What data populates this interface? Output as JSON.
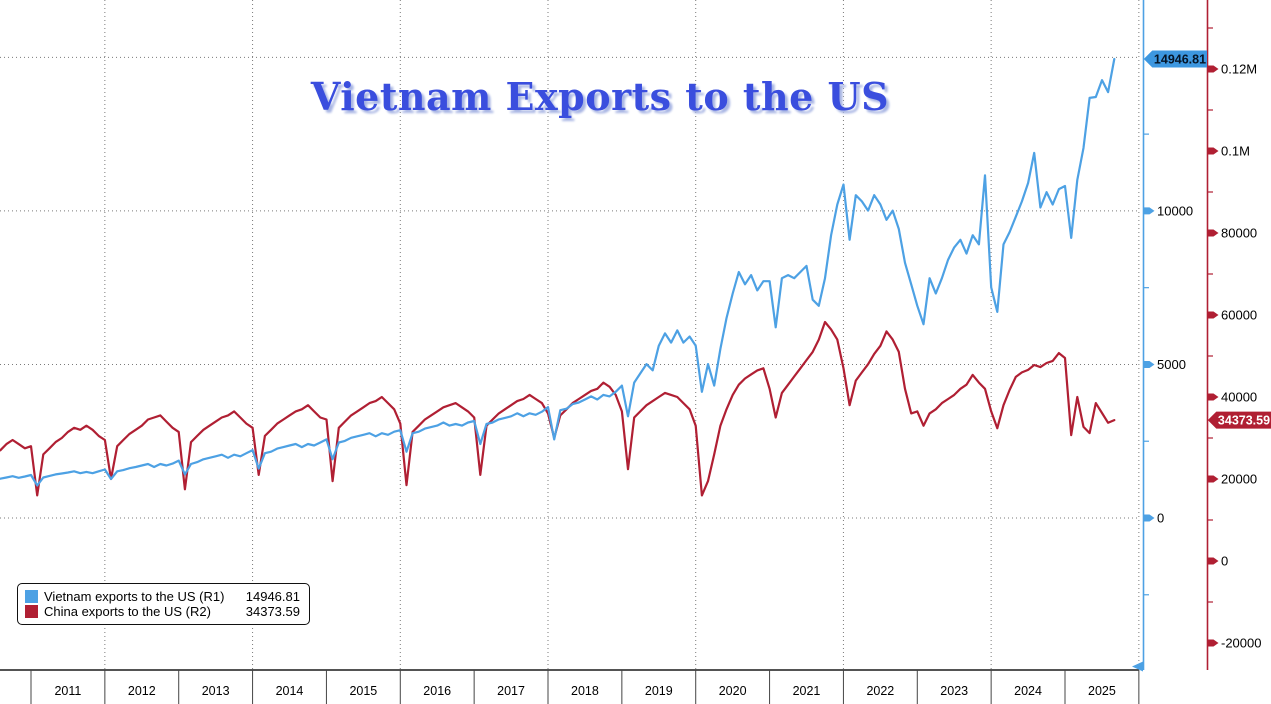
{
  "title": "Vietnam Exports to the US",
  "colors": {
    "vietnam_line": "#4da1e4",
    "china_line": "#b01f33",
    "grid": "#7a7a7a",
    "axis_label_text": "#000000",
    "title_blue": "#3a4ede",
    "title_shadow": "#a9b6e4",
    "bottom_axis_line": "#1a1a1a"
  },
  "legend": {
    "items": [
      {
        "label": "Vietnam exports to the US (R1)",
        "value": "14946.81",
        "color": "#4da1e4"
      },
      {
        "label": "China exports to the US (R2)",
        "value": "34373.59",
        "color": "#b01f33"
      }
    ]
  },
  "chart_data": {
    "type": "line",
    "title": "Vietnam Exports to the US",
    "x_start": "2010-08",
    "x_end": "2025-09",
    "frequency": "monthly",
    "grid": "dotted, horizontal at R1 majors, vertical every 2 years",
    "x_tick_labels": [
      "2011",
      "2012",
      "2013",
      "2014",
      "2015",
      "2016",
      "2017",
      "2018",
      "2019",
      "2020",
      "2021",
      "2022",
      "2023",
      "2024",
      "2025"
    ],
    "axes": {
      "r1": {
        "side": "right-inner",
        "color": "#4da1e4",
        "range": [
          -3000,
          16400
        ],
        "major_ticks": [
          {
            "value": 15000,
            "label": ""
          },
          {
            "value": 10000,
            "label": "10000"
          },
          {
            "value": 5000,
            "label": "5000"
          },
          {
            "value": 0,
            "label": "0"
          }
        ],
        "minor_tick_values": [
          12500,
          7500,
          2500,
          -2500
        ],
        "last_value_badge": {
          "text": "14946.81",
          "value": 14946.81,
          "bg": "#3d97e0",
          "text_color": "#051426"
        }
      },
      "r2": {
        "side": "right-outer",
        "color": "#b01f33",
        "range": [
          -26000,
          137000
        ],
        "major_ticks": [
          {
            "value": 120000,
            "label": "0.12M"
          },
          {
            "value": 100000,
            "label": "0.1M"
          },
          {
            "value": 80000,
            "label": "80000"
          },
          {
            "value": 60000,
            "label": "60000"
          },
          {
            "value": 40000,
            "label": "40000"
          },
          {
            "value": 20000,
            "label": "20000"
          },
          {
            "value": 0,
            "label": "0"
          },
          {
            "value": -20000,
            "label": "-20000"
          }
        ],
        "minor_tick_values": [
          130000,
          110000,
          90000,
          70000,
          50000,
          30000,
          10000,
          -10000
        ],
        "last_value_badge": {
          "text": "34373.59",
          "value": 34373.59,
          "bg": "#b01f33",
          "text_color": "#ffffff"
        }
      }
    },
    "series": [
      {
        "name": "Vietnam exports to the US",
        "axis": "r1",
        "color": "#4da1e4",
        "last_value": 14946.81,
        "values": [
          1280,
          1320,
          1360,
          1310,
          1350,
          1400,
          1060,
          1320,
          1370,
          1420,
          1450,
          1480,
          1520,
          1460,
          1500,
          1460,
          1520,
          1580,
          1270,
          1520,
          1560,
          1620,
          1660,
          1710,
          1760,
          1660,
          1760,
          1710,
          1770,
          1870,
          1420,
          1760,
          1820,
          1910,
          1960,
          2010,
          2060,
          1960,
          2060,
          2010,
          2110,
          2210,
          1610,
          2110,
          2160,
          2260,
          2310,
          2360,
          2410,
          2310,
          2410,
          2360,
          2460,
          2560,
          1910,
          2460,
          2510,
          2610,
          2660,
          2710,
          2760,
          2660,
          2760,
          2710,
          2810,
          2860,
          2160,
          2760,
          2810,
          2910,
          2960,
          3010,
          3110,
          3010,
          3060,
          3010,
          3110,
          3160,
          2410,
          3060,
          3110,
          3210,
          3260,
          3310,
          3410,
          3310,
          3410,
          3360,
          3460,
          3610,
          2560,
          3510,
          3560,
          3710,
          3760,
          3860,
          3960,
          3860,
          4010,
          3960,
          4110,
          4310,
          3310,
          4410,
          4710,
          5010,
          4810,
          5610,
          6010,
          5710,
          6110,
          5710,
          5910,
          5610,
          4110,
          5010,
          4310,
          5510,
          6510,
          7310,
          8010,
          7610,
          7910,
          7410,
          7710,
          7710,
          6210,
          7810,
          7910,
          7810,
          8010,
          8210,
          7110,
          6910,
          7810,
          9210,
          10210,
          10860,
          9060,
          10510,
          10310,
          10010,
          10510,
          10210,
          9710,
          10010,
          9410,
          8310,
          7610,
          6910,
          6310,
          7810,
          7310,
          7810,
          8410,
          8810,
          9060,
          8610,
          9210,
          8910,
          11160,
          7510,
          6710,
          8910,
          9310,
          9810,
          10310,
          10910,
          11890,
          10110,
          10610,
          10210,
          10710,
          10810,
          9120,
          11010,
          12050,
          13680,
          13710,
          14260,
          13870,
          14946.81
        ]
      },
      {
        "name": "China exports to the US",
        "axis": "r2",
        "color": "#b01f33",
        "last_value": 34373.59,
        "values": [
          27000,
          28500,
          29500,
          28500,
          27500,
          28000,
          16000,
          26000,
          27500,
          29000,
          30000,
          31500,
          32500,
          32000,
          33000,
          32000,
          30500,
          29500,
          20000,
          28000,
          29500,
          31000,
          32000,
          33000,
          34500,
          35000,
          35500,
          34000,
          32500,
          31500,
          17500,
          29000,
          30500,
          32000,
          33000,
          34000,
          35000,
          35500,
          36500,
          35000,
          33500,
          32500,
          21000,
          30500,
          32000,
          33500,
          34500,
          35500,
          36500,
          37000,
          38000,
          36500,
          35000,
          34500,
          19500,
          32500,
          34000,
          35500,
          36500,
          37500,
          38500,
          39000,
          40000,
          38500,
          37000,
          33500,
          18500,
          31500,
          33000,
          34500,
          35500,
          36500,
          37500,
          38000,
          38500,
          37500,
          36500,
          35000,
          21000,
          33000,
          34500,
          36000,
          37000,
          38000,
          39000,
          39500,
          40500,
          39500,
          38500,
          36000,
          30000,
          35500,
          37000,
          38500,
          39500,
          40500,
          41500,
          42000,
          43500,
          42500,
          40500,
          36500,
          22400,
          35000,
          36500,
          38000,
          39000,
          40000,
          41000,
          40500,
          40000,
          38500,
          37000,
          33000,
          16000,
          19500,
          26000,
          33000,
          37000,
          40500,
          43000,
          44500,
          45500,
          46500,
          47000,
          42000,
          35000,
          41000,
          43000,
          45000,
          47000,
          49000,
          51000,
          54000,
          58300,
          56500,
          54000,
          47000,
          38000,
          44000,
          46000,
          48000,
          50500,
          52500,
          56000,
          54000,
          51000,
          42000,
          36000,
          36500,
          33000,
          36000,
          37000,
          38500,
          39500,
          40500,
          42000,
          43000,
          45400,
          43500,
          42000,
          36500,
          32400,
          38000,
          41700,
          44900,
          46000,
          46600,
          47800,
          47300,
          48300,
          48800,
          50700,
          49500,
          30700,
          40000,
          32700,
          31200,
          38500,
          36100,
          33700,
          34373.59
        ]
      }
    ]
  }
}
